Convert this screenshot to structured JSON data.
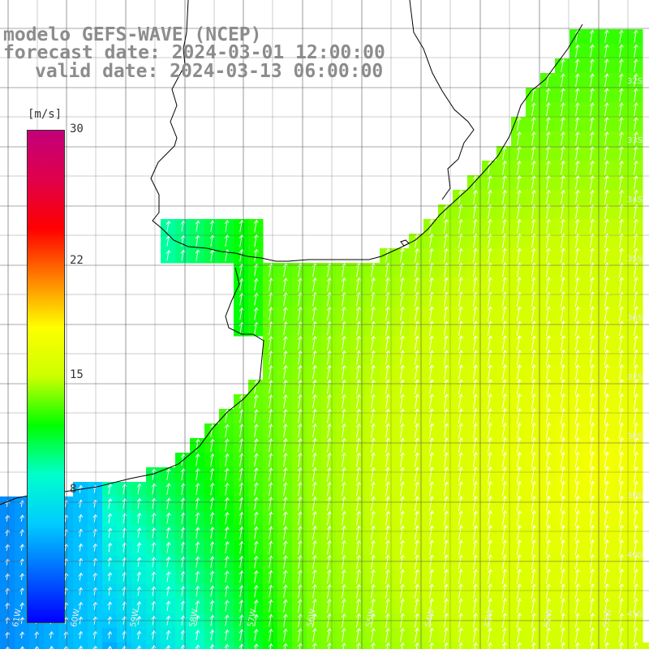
{
  "title": {
    "line1": "modelo GEFS-WAVE (NCEP)",
    "line2": "forecast date: 2024-03-01 12:00:00",
    "line3": "valid date: 2024-03-13 06:00:00"
  },
  "colorbar": {
    "unit": "[m/s]",
    "min": 0,
    "max": 30,
    "ticks": [
      {
        "label": "30",
        "value": 30
      },
      {
        "label": "22",
        "value": 22
      },
      {
        "label": "15",
        "value": 15
      },
      {
        "label": "8",
        "value": 8
      }
    ],
    "colors": [
      "#0000ff",
      "#0066ff",
      "#00ccff",
      "#00ffcc",
      "#00ff00",
      "#ccff00",
      "#ffff00",
      "#ff8000",
      "#ff0000",
      "#e0004a",
      "#c2007a"
    ]
  },
  "latitude_labels": [
    "32S",
    "33S",
    "34S",
    "35S",
    "36S",
    "37S",
    "38S",
    "39S",
    "40S",
    "41S"
  ],
  "longitude_labels": [
    "61W",
    "60W",
    "59W",
    "58W",
    "57W",
    "56W",
    "55W",
    "54W",
    "53W",
    "52W",
    "51W"
  ],
  "colors": {
    "grid": "#555555",
    "coast": "#000000",
    "arrow": "#ffffff",
    "title": "#8c8c8c"
  }
}
